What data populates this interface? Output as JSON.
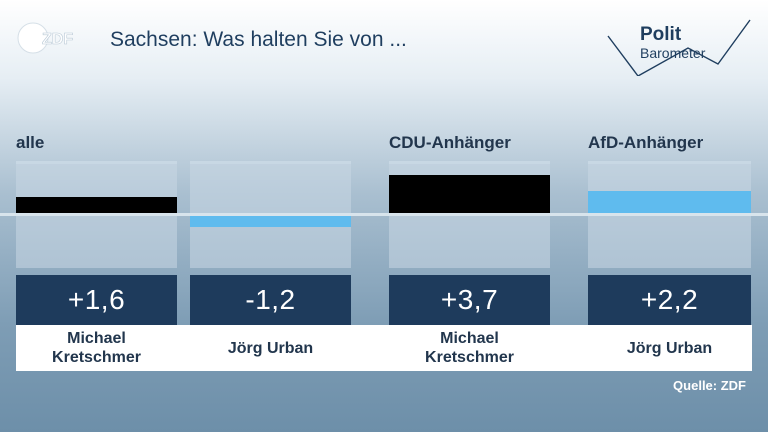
{
  "header": {
    "logo_text": "ZDF",
    "title": "Sachsen: Was halten Sie von ...",
    "brand_line1": "Polit",
    "brand_line2": "Barometer"
  },
  "groups": [
    {
      "label": "alle"
    },
    {
      "label": "CDU-Anhänger"
    },
    {
      "label": "AfD-Anhänger"
    }
  ],
  "chart_data": {
    "type": "bar",
    "title": "Sachsen: Was halten Sie von ...",
    "categories": [
      "alle: Michael Kretschmer",
      "alle: Jörg Urban",
      "CDU-Anhänger: Michael Kretschmer",
      "AfD-Anhänger: Jörg Urban"
    ],
    "groups": [
      "alle",
      "alle",
      "CDU-Anhänger",
      "AfD-Anhänger"
    ],
    "names": [
      "Michael\nKretschmer",
      "Jörg Urban",
      "Michael\nKretschmer",
      "Jörg Urban"
    ],
    "values": [
      1.6,
      -1.2,
      3.7,
      2.2
    ],
    "value_labels": [
      "+1,6",
      "-1,2",
      "+3,7",
      "+2,2"
    ],
    "bar_colors": [
      "#000000",
      "#5fbbee",
      "#000000",
      "#5fbbee"
    ],
    "ylim": [
      -5,
      5
    ]
  },
  "source": "Quelle: ZDF",
  "colors": {
    "value_box": "#1e3b5c",
    "kretschmer": "#000000",
    "urban": "#5fbbee"
  }
}
